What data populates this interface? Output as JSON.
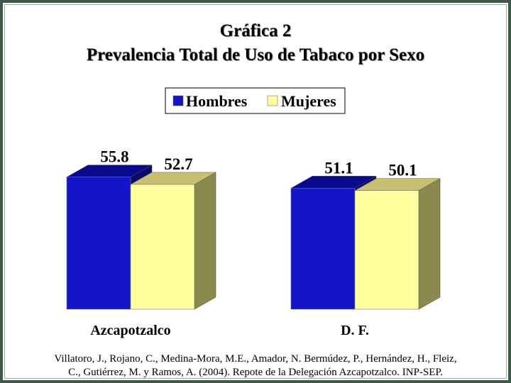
{
  "chart_data": {
    "type": "bar",
    "title": "Gráfica 2",
    "subtitle": "Prevalencia Total de Uso de Tabaco por Sexo",
    "categories": [
      "Azcapotzalco",
      "D. F."
    ],
    "series": [
      {
        "name": "Hombres",
        "values": [
          55.8,
          51.1
        ],
        "color": "#1414c8",
        "top_color": "#0a0a8c",
        "side_color": "#0a0a6e"
      },
      {
        "name": "Mujeres",
        "values": [
          52.7,
          50.1
        ],
        "color": "#ffff9e",
        "top_color": "#c8c070",
        "side_color": "#8a8a4e"
      }
    ],
    "data_labels": [
      [
        "55.8",
        "52.7"
      ],
      [
        "51.1",
        "50.1"
      ]
    ],
    "legend_position": "top-center",
    "style": "3d-bar",
    "grid": false
  },
  "source": {
    "line1": "Villatoro, J., Rojano, C., Medina-Mora, M.E., Amador, N. Bermúdez, P., Hernández, H., Fleiz,",
    "line2": "C., Gutiérrez, M. y Ramos, A. (2004). Repote de la Delegación Azcapotzalco. INP-SEP."
  },
  "frame_color": "#3c5a48"
}
